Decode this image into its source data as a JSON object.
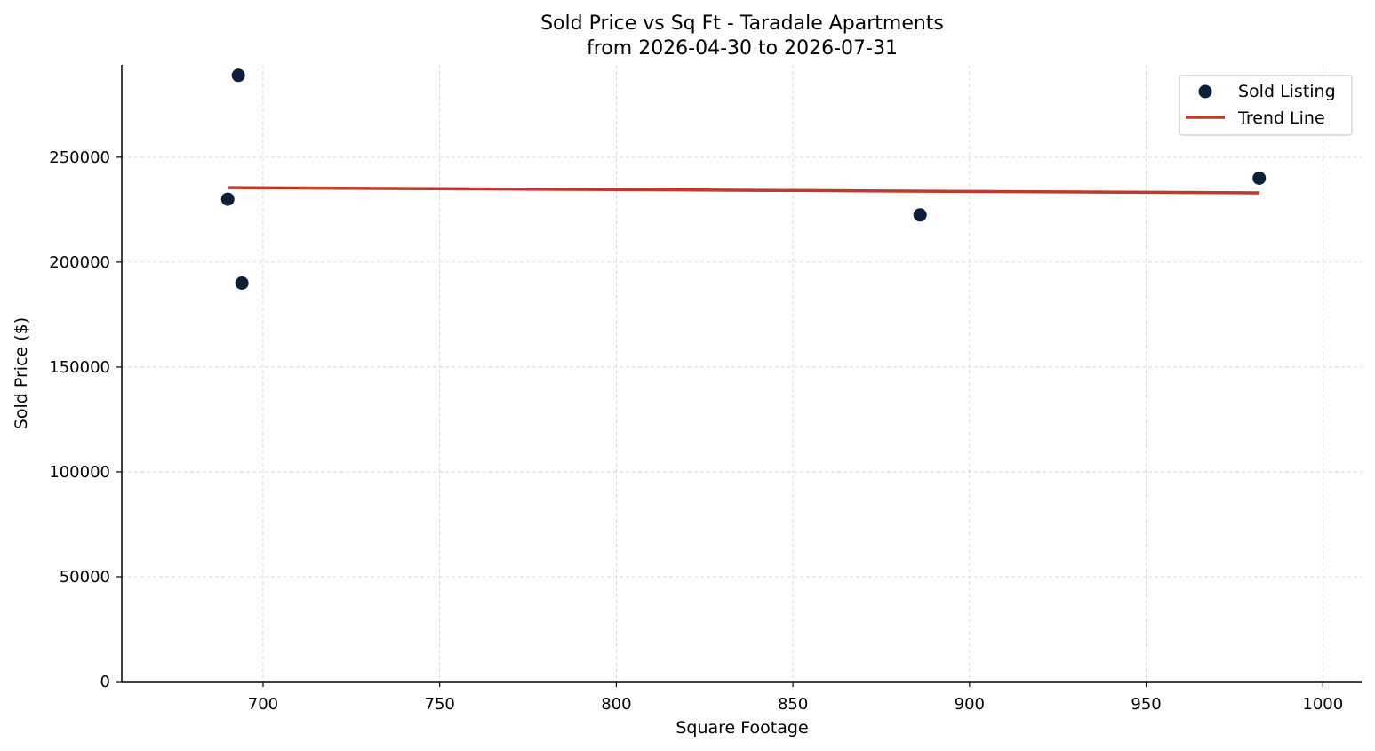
{
  "chart_data": {
    "type": "scatter",
    "title": "Sold Price vs Sq Ft - Taradale Apartments",
    "subtitle": "from 2026-04-30 to 2026-07-31",
    "xlabel": "Square Footage",
    "ylabel": "Sold Price ($)",
    "xlim": [
      660,
      1011
    ],
    "ylim": [
      0,
      294000
    ],
    "x_ticks": [
      700,
      750,
      800,
      850,
      900,
      950,
      1000
    ],
    "y_ticks": [
      0,
      50000,
      100000,
      150000,
      200000,
      250000
    ],
    "grid": true,
    "legend_position": "top-right",
    "series": [
      {
        "name": "Sold Listing",
        "kind": "scatter",
        "color": "#0b1f3a",
        "points": [
          {
            "x": 693,
            "y": 289000
          },
          {
            "x": 690,
            "y": 230000
          },
          {
            "x": 694,
            "y": 190000
          },
          {
            "x": 886,
            "y": 222500
          },
          {
            "x": 982,
            "y": 240000
          }
        ]
      },
      {
        "name": "Trend Line",
        "kind": "line",
        "color": "#c0392b",
        "points": [
          {
            "x": 690,
            "y": 235500
          },
          {
            "x": 982,
            "y": 233000
          }
        ]
      }
    ]
  }
}
